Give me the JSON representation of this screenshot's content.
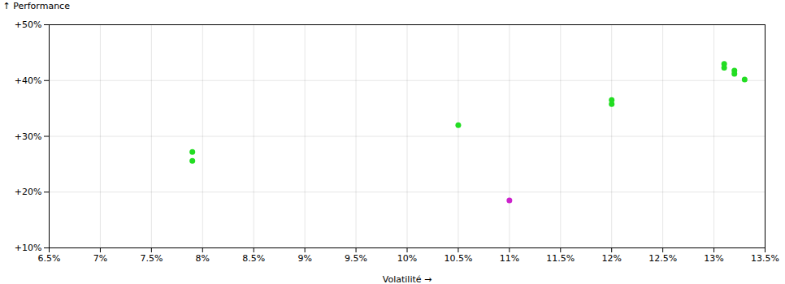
{
  "chart_data": {
    "type": "scatter",
    "xlabel": "Volatilité",
    "ylabel": "Performance",
    "xlim": [
      0.065,
      0.135
    ],
    "ylim": [
      0.1,
      0.5
    ],
    "xticks": [
      {
        "value": 0.065,
        "label": "6.5%"
      },
      {
        "value": 0.07,
        "label": "7%"
      },
      {
        "value": 0.075,
        "label": "7.5%"
      },
      {
        "value": 0.08,
        "label": "8%"
      },
      {
        "value": 0.085,
        "label": "8.5%"
      },
      {
        "value": 0.09,
        "label": "9%"
      },
      {
        "value": 0.095,
        "label": "9.5%"
      },
      {
        "value": 0.1,
        "label": "10%"
      },
      {
        "value": 0.105,
        "label": "10.5%"
      },
      {
        "value": 0.11,
        "label": "11%"
      },
      {
        "value": 0.115,
        "label": "11.5%"
      },
      {
        "value": 0.12,
        "label": "12%"
      },
      {
        "value": 0.125,
        "label": "12.5%"
      },
      {
        "value": 0.13,
        "label": "13%"
      },
      {
        "value": 0.135,
        "label": "13.5%"
      }
    ],
    "yticks": [
      {
        "value": 0.1,
        "label": "+10%"
      },
      {
        "value": 0.2,
        "label": "+20%"
      },
      {
        "value": 0.3,
        "label": "+30%"
      },
      {
        "value": 0.4,
        "label": "+40%"
      },
      {
        "value": 0.5,
        "label": "+50%"
      }
    ],
    "grid": true,
    "series": [
      {
        "color": "#22dd22",
        "x": [
          0.079,
          0.079,
          0.105,
          0.12,
          0.12,
          0.131,
          0.131,
          0.132,
          0.132,
          0.133
        ],
        "values": [
          0.272,
          0.256,
          0.32,
          0.365,
          0.358,
          0.43,
          0.423,
          0.418,
          0.412,
          0.402
        ]
      },
      {
        "color": "#cc22cc",
        "x": [
          0.11
        ],
        "values": [
          0.185
        ]
      }
    ]
  }
}
